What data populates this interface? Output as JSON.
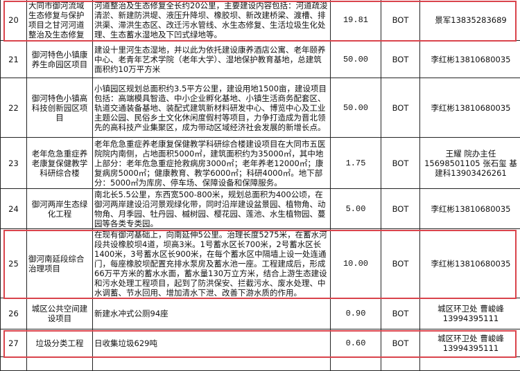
{
  "highlight_color": "#d9434b",
  "rows": [
    {
      "no": "20",
      "name": "大同市御河流域生态修复与保护项目之甘河河道整治及生态修复",
      "desc": "河道整治及生态修复全长约20公里，主要建设内容包括：河道疏浚清淤、新建防洪堤、液压升降坝、橡胶坝、新改建桥梁、渡槽、排洪渠、滞洪生态区、改迁污水管线、水生态修复、生活垃圾生化处理、生态蓄水湿地及下凹式绿地等。",
      "amount": "19.81",
      "mode": "BOT",
      "contact": "景军13835283689",
      "highlighted": true
    },
    {
      "no": "21",
      "name": "御河特色小镇康养生命园区项目",
      "desc": "建设十里河生态湿地，并以此为依托建设康养酒店公寓、老年颐养中心、老青年艺术学院（老年大学）、湿地保护教育基地，总建筑面积约10万平方米",
      "amount": "50.00",
      "mode": "BOT",
      "contact": "李红彬13810680035",
      "highlighted": false
    },
    {
      "no": "22",
      "name": "御河特色小镇高科技创新园区项目",
      "desc": "小镇园区规划总面积约3.5平方公里，建设用地1500亩，建设项目包括：高端模具智造、中小企业孵化基地、小镇生活商务配套区、轨道交通装备基地、装配式建筑新材料研发中心、博览中心及工业主题公园、民俗乡土文化休闲度假村等项目，力争打造成为晋北领先的高科技产业集聚区，成为带动区域经济社会发展的新增长点。",
      "amount": "50.00",
      "mode": "BOT",
      "contact": "李红彬13810680035",
      "highlighted": false
    },
    {
      "no": "23",
      "name": "老年危急重症养老康复保健教学科研综合楼",
      "desc": "老年危急重症养老康复保健教学科研综合楼建设项目在大同市五医院院内南侧，占地面积5000㎡，建筑面积约为35000㎡，其中地上部分：老年危急重症抢救病房3000㎡；老年养老12000㎡；康复病房5000㎡；健康教育、教学6000㎡；科研4000㎡。地下部分：5000㎡为库房、停车场、保障设备和保障服务。",
      "amount": "1.75",
      "mode": "BOT",
      "contact": "王耀 院办主任15698501105 张石玺 基建科13903426261",
      "highlighted": false
    },
    {
      "no": "24",
      "name": "御河两岸生态绿化工程",
      "desc": "南北长5.5公里，东西宽500-800米，规划总面积为400公顷，在御河两岸建设沿河景观绿化带，同时沿岸建设盆景园、植物角、动物角、月季园、牡丹园、槭树园、樱花园、莲池、水生植物园、蔓园等各类专类园。",
      "amount": "5.00",
      "mode": "BOT",
      "contact": "李红彬13810680035",
      "highlighted": false
    },
    {
      "no": "25",
      "name": "御河南延段综合治理项目",
      "desc": "在现有御河基础上，向南延伸5公里。治理长度5275米，在蓄水河段共设橡胶坝4道，坝高3米。1号蓄水区长700米，2号蓄水区长1400米，3号蓄水区长900米，在每个蓄水区中隔墙上设一处连通门，每座橡胶坝配置充排水泵房及蓄水池一座。工程建成后，形成66万平方米的蓄水水面，蓄水量130万立方米，结合上游生态建设和污水处理工程项目，起到了防洪保安、拦截污水、废水处理、中水调蓄、节水回用、增加清水下泄、改善下游水质的作用。",
      "amount": "10.00",
      "mode": "BOT",
      "contact": "李红彬13810680035",
      "highlighted": true
    },
    {
      "no": "26",
      "name": "城区公共空间建设项目",
      "desc": "新建水冲式公厕94座",
      "amount": "0.90",
      "mode": "BOT",
      "contact": "城区环卫处 曹峻峰 13994395111",
      "highlighted": false
    },
    {
      "no": "27",
      "name": "垃圾分类工程",
      "desc": "日收集垃圾629吨",
      "amount": "0.60",
      "mode": "BOT",
      "contact": "城区环卫处 曹峻峰 13994395111",
      "highlighted": true
    }
  ]
}
